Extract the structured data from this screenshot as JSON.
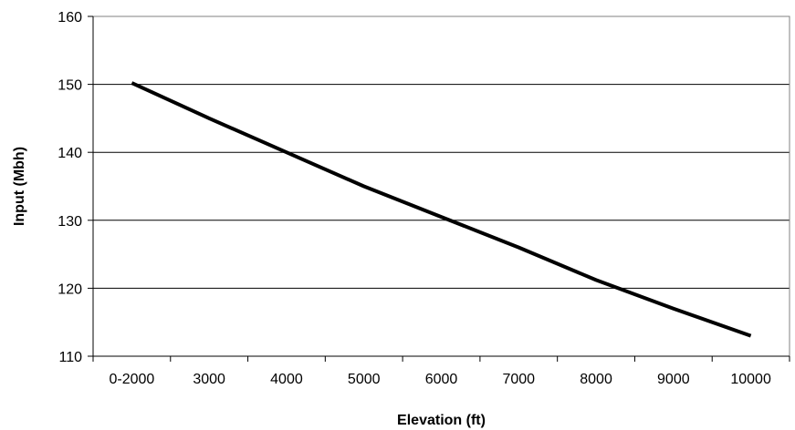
{
  "chart_data": {
    "type": "line",
    "title": "",
    "xlabel": "Elevation (ft)",
    "ylabel": "Input (Mbh)",
    "categories": [
      "0-2000",
      "3000",
      "4000",
      "5000",
      "6000",
      "7000",
      "8000",
      "9000",
      "10000"
    ],
    "series": [
      {
        "values": [
          150.2,
          145.0,
          140.0,
          135.0,
          130.5,
          126.0,
          121.2,
          117.0,
          113.0
        ],
        "color": "#000000"
      }
    ],
    "ylim": [
      110,
      160
    ],
    "yticks": [
      110,
      120,
      130,
      140,
      150,
      160
    ],
    "grid": true,
    "legend": "none",
    "colors": {
      "gridline": "#000000",
      "plot_border": "#808080",
      "line": "#000000"
    }
  }
}
